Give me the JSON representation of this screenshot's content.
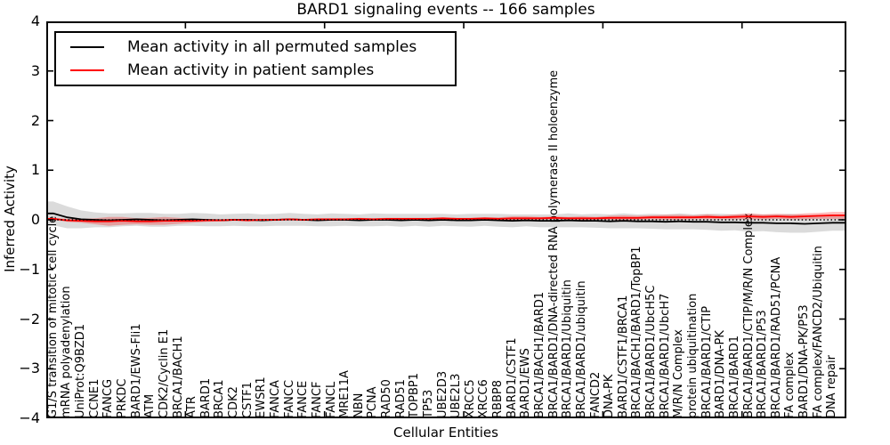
{
  "title": "BARD1 signaling events -- 166 samples",
  "legend": {
    "items": [
      {
        "label": "Mean activity in all permuted samples",
        "color": "#000000"
      },
      {
        "label": "Mean activity in patient samples",
        "color": "#ff0000"
      }
    ]
  },
  "axes": {
    "ylabel": "Inferred Activity",
    "xlabel": "Cellular Entities",
    "ytick_values": [
      4,
      3,
      2,
      1,
      0,
      -1,
      -2,
      -3,
      -4
    ],
    "ytick_labels": [
      "4",
      "3",
      "2",
      "1",
      "0",
      "−1",
      "−2",
      "−3",
      "−4"
    ]
  },
  "chart_data": {
    "type": "line",
    "title": "BARD1 signaling events -- 166 samples",
    "xlabel": "Cellular Entities",
    "ylabel": "Inferred Activity",
    "ylim": [
      -4,
      4
    ],
    "xlim": [
      0,
      57.5
    ],
    "grid": false,
    "legend_position": "upper left",
    "zero_line_style": "dotted",
    "x_major_ticks": [
      10,
      20,
      30,
      40,
      50
    ],
    "categories": [
      "G1/S transition of mitotic cell cycle",
      "mRNA polyadenylation",
      "UniProt:Q9BZD1",
      "CCNE1",
      "FANCG",
      "PRKDC",
      "BARD1/EWS-Fli1",
      "ATM",
      "CDK2/Cyclin E1",
      "BRCA1/BACH1",
      "ATR",
      "BARD1",
      "BRCA1",
      "CDK2",
      "CSTF1",
      "EWSR1",
      "FANCA",
      "FANCC",
      "FANCE",
      "FANCF",
      "FANCL",
      "MRE11A",
      "NBN",
      "PCNA",
      "RAD50",
      "RAD51",
      "TOPBP1",
      "TP53",
      "UBE2D3",
      "UBE2L3",
      "XRCC5",
      "XRCC6",
      "RBBP8",
      "BARD1/CSTF1",
      "BARD1/EWS",
      "BRCA1/BACH1/BARD1",
      "BRCA1/BARD1/DNA-directed RNA polymerase II holoenzyme",
      "BRCA1/BARD1/Ubiquitin",
      "BRCA1/BARD1/ubiquitin",
      "FANCD2",
      "DNA-PK",
      "BARD1/CSTF1/BRCA1",
      "BRCA1/BACH1/BARD1/TopBP1",
      "BRCA1/BARD1/UbcH5C",
      "BRCA1/BARD1/UbcH7",
      "M/R/N Complex",
      "protein ubiquitination",
      "BRCA1/BARD1/CTIP",
      "BARD1/DNA-PK",
      "BRCA1/BARD1",
      "BRCA1/BARD1/CTIP/M/R/N Complex",
      "BRCA1/BARD1/P53",
      "BRCA1/BARD1/RAD51/PCNA",
      "FA complex",
      "BARD1/DNA-PK/P53",
      "FA complex/FANCD2/Ubiquitin",
      "DNA repair"
    ],
    "series": [
      {
        "name": "Mean activity in all permuted samples",
        "color": "#000000",
        "band_color": "#000000",
        "band_opacity": 0.14,
        "values": [
          0.13,
          0.05,
          0.01,
          0.0,
          -0.01,
          0.0,
          0.01,
          0.0,
          -0.01,
          0.0,
          0.01,
          0.0,
          -0.01,
          0.0,
          0.0,
          -0.01,
          0.0,
          0.01,
          0.0,
          -0.01,
          0.0,
          0.0,
          -0.01,
          0.0,
          0.0,
          -0.01,
          0.0,
          -0.01,
          0.0,
          -0.01,
          -0.01,
          0.0,
          -0.01,
          -0.02,
          -0.01,
          -0.02,
          -0.02,
          -0.01,
          -0.02,
          -0.02,
          -0.03,
          -0.02,
          -0.03,
          -0.03,
          -0.04,
          -0.03,
          -0.04,
          -0.04,
          -0.05,
          -0.05,
          -0.06,
          -0.06,
          -0.07,
          -0.07,
          -0.08,
          -0.07,
          -0.06
        ],
        "band_halfwidth": [
          0.24,
          0.22,
          0.18,
          0.15,
          0.14,
          0.13,
          0.13,
          0.14,
          0.13,
          0.12,
          0.13,
          0.13,
          0.12,
          0.12,
          0.13,
          0.12,
          0.12,
          0.13,
          0.12,
          0.12,
          0.13,
          0.12,
          0.12,
          0.13,
          0.12,
          0.13,
          0.12,
          0.13,
          0.12,
          0.12,
          0.13,
          0.12,
          0.13,
          0.13,
          0.12,
          0.13,
          0.13,
          0.14,
          0.13,
          0.14,
          0.14,
          0.15,
          0.14,
          0.15,
          0.15,
          0.16,
          0.15,
          0.16,
          0.17,
          0.16,
          0.18,
          0.17,
          0.18,
          0.19,
          0.18,
          0.17,
          0.16
        ]
      },
      {
        "name": "Mean activity in patient samples",
        "color": "#ff0000",
        "band_color": "#ff0000",
        "band_opacity": 0.27,
        "values": [
          0.02,
          -0.01,
          -0.02,
          -0.03,
          -0.03,
          -0.02,
          -0.03,
          -0.03,
          -0.02,
          -0.02,
          -0.02,
          -0.01,
          -0.01,
          0.0,
          -0.01,
          0.0,
          0.0,
          0.01,
          0.0,
          0.01,
          0.01,
          0.01,
          0.02,
          0.01,
          0.02,
          0.02,
          0.02,
          0.02,
          0.03,
          0.02,
          0.02,
          0.03,
          0.02,
          0.03,
          0.03,
          0.03,
          0.04,
          0.03,
          0.03,
          0.03,
          0.04,
          0.04,
          0.04,
          0.05,
          0.05,
          0.05,
          0.05,
          0.06,
          0.05,
          0.06,
          0.07,
          0.06,
          0.07,
          0.06,
          0.07,
          0.08,
          0.09
        ],
        "band_halfwidth": [
          0.02,
          0.03,
          0.04,
          0.06,
          0.09,
          0.08,
          0.06,
          0.07,
          0.08,
          0.06,
          0.04,
          0.03,
          0.02,
          0.02,
          0.02,
          0.02,
          0.02,
          0.02,
          0.02,
          0.02,
          0.02,
          0.02,
          0.02,
          0.02,
          0.02,
          0.02,
          0.02,
          0.02,
          0.02,
          0.02,
          0.02,
          0.02,
          0.03,
          0.04,
          0.04,
          0.03,
          0.03,
          0.03,
          0.04,
          0.03,
          0.04,
          0.05,
          0.04,
          0.04,
          0.05,
          0.05,
          0.04,
          0.05,
          0.04,
          0.05,
          0.06,
          0.05,
          0.05,
          0.05,
          0.06,
          0.06,
          0.07
        ]
      }
    ]
  }
}
